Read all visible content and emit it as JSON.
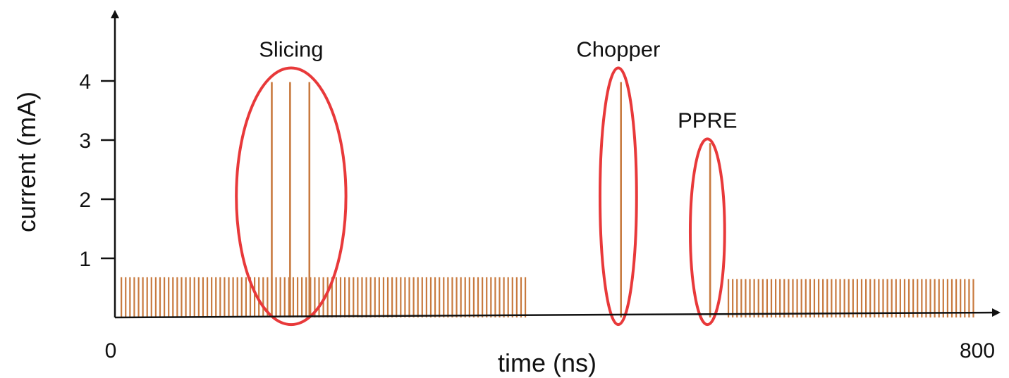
{
  "chart_data": {
    "type": "bar",
    "xlabel": "time (ns)",
    "ylabel": "current (mA)",
    "xlim": [
      0,
      800
    ],
    "ylim": [
      0,
      4
    ],
    "x_tick_labels": [
      "0",
      "800"
    ],
    "y_tick_labels": [
      "1",
      "2",
      "3",
      "4"
    ],
    "y_ticks": [
      1,
      2,
      3,
      4
    ],
    "grid": false,
    "legend": "none",
    "colors": {
      "pulse": "#c87a3f",
      "highlight": "#e8393a",
      "axis": "#111111"
    },
    "bunch_trains": [
      {
        "start": 6,
        "end": 382,
        "spacing": 4,
        "current": 0.68
      },
      {
        "start": 571,
        "end": 800,
        "spacing": 4,
        "current": 0.65
      }
    ],
    "spikes": [
      {
        "x": 146,
        "current": 3.98
      },
      {
        "x": 163,
        "current": 3.98
      },
      {
        "x": 181,
        "current": 3.98
      },
      {
        "x": 471,
        "current": 3.98
      },
      {
        "x": 554,
        "current": 2.95
      }
    ],
    "annotations": [
      {
        "label": "Slicing",
        "cx": 164,
        "cy": 2.05,
        "rx": 51,
        "ry": 2.17
      },
      {
        "label": "Chopper",
        "cx": 468.5,
        "cy": 2.05,
        "rx": 17,
        "ry": 2.17
      },
      {
        "label": "PPRE",
        "cx": 551.5,
        "cy": 1.45,
        "rx": 16,
        "ry": 1.57
      }
    ]
  }
}
